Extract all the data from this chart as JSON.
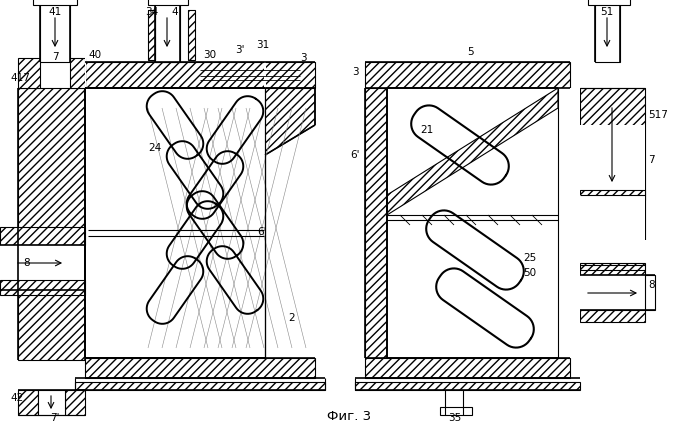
{
  "title": "Фиг. 3",
  "bg_color": "#ffffff",
  "line_color": "#000000",
  "fig_width": 6.99,
  "fig_height": 4.26,
  "dpi": 100
}
